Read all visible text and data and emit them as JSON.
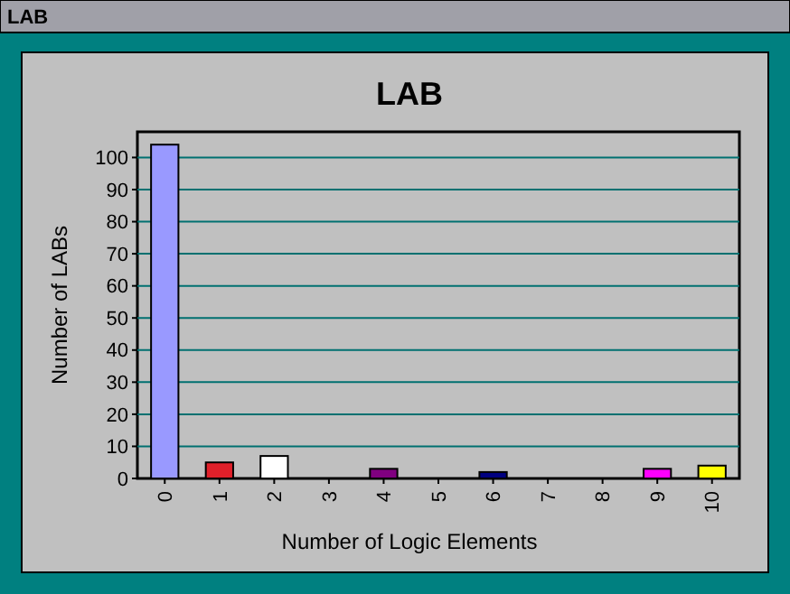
{
  "chart_data": {
    "type": "bar",
    "title": "LAB",
    "xlabel": "Number of Logic Elements",
    "ylabel": "Number of LABs",
    "annotations": [
      "LAB"
    ],
    "categories": [
      "0",
      "1",
      "2",
      "3",
      "4",
      "5",
      "6",
      "7",
      "8",
      "9",
      "10"
    ],
    "values": [
      104,
      5,
      7,
      0,
      3,
      0,
      2,
      0,
      0,
      3,
      4
    ],
    "colors": [
      "#9999ff",
      "#e0202a",
      "#ffffff",
      "#c0c0c0",
      "#800080",
      "#c0c0c0",
      "#000080",
      "#c0c0c0",
      "#c0c0c0",
      "#ff00ff",
      "#ffff00"
    ],
    "ylim": [
      0,
      108
    ],
    "yticks": [
      0,
      10,
      20,
      30,
      40,
      50,
      60,
      70,
      80,
      90,
      100
    ],
    "grid": "y"
  }
}
